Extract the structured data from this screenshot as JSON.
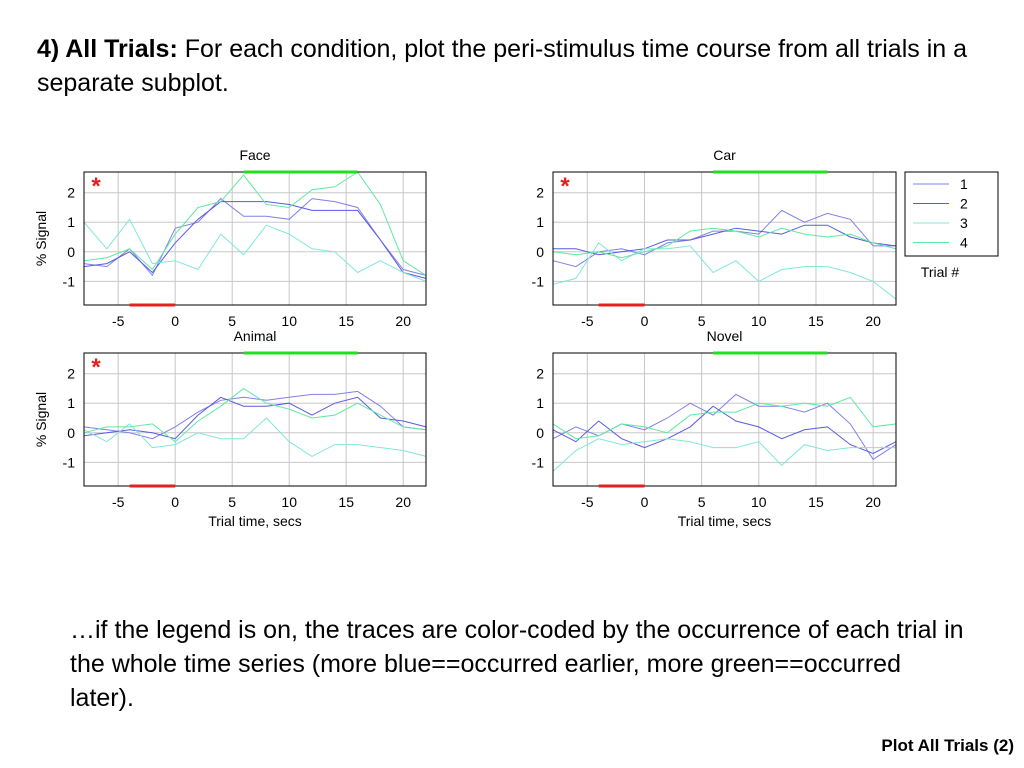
{
  "slide": {
    "heading_bold": "4) All Trials:",
    "heading_text": " For each condition, plot the peri-stimulus time course from all trials in a separate subplot.",
    "caption": "…if the legend is on, the traces are color-coded by the occurrence of each trial in the whole time series (more blue==occurred earlier, more green==occurred later).",
    "footer": "Plot All Trials (2)"
  },
  "colors": {
    "trial_1": "#8080e8",
    "trial_2": "#5a5ae0",
    "trial_3": "#80e8d8",
    "trial_4": "#60e8a0",
    "baseline_bar": "#e52020",
    "stimulus_bar": "#20e020",
    "asterisk": "#e52020",
    "grid": "#c8c8c8"
  },
  "chart_data": [
    {
      "type": "line",
      "title": "Face",
      "xlabel": "",
      "ylabel": "% Signal",
      "xlim": [
        -8,
        22
      ],
      "ylim": [
        -1.8,
        2.7
      ],
      "xticks": [
        -5,
        0,
        5,
        10,
        15,
        20
      ],
      "yticks": [
        -1,
        0,
        1,
        2
      ],
      "grid": true,
      "significant": true,
      "asterisk": "*",
      "baseline_window": [
        -4,
        0
      ],
      "stimulus_window": [
        6,
        16
      ],
      "x": [
        -8,
        -6,
        -4,
        -2,
        0,
        2,
        4,
        6,
        8,
        10,
        12,
        14,
        16,
        18,
        20,
        22
      ],
      "series": [
        {
          "name": "1",
          "values": [
            -0.4,
            -0.5,
            0.1,
            -0.8,
            0.8,
            1.0,
            1.8,
            1.2,
            1.2,
            1.1,
            1.8,
            1.7,
            1.5,
            0.4,
            -0.6,
            -0.8
          ]
        },
        {
          "name": "2",
          "values": [
            -0.5,
            -0.4,
            0.0,
            -0.7,
            0.3,
            1.1,
            1.7,
            1.7,
            1.7,
            1.6,
            1.4,
            1.4,
            1.4,
            0.4,
            -0.7,
            -0.9
          ]
        },
        {
          "name": "3",
          "values": [
            1.0,
            0.1,
            1.1,
            -0.4,
            -0.3,
            -0.6,
            0.6,
            -0.1,
            0.9,
            0.6,
            0.1,
            0.0,
            -0.7,
            -0.3,
            -0.7,
            -1.0
          ]
        },
        {
          "name": "4",
          "values": [
            -0.3,
            -0.2,
            0.1,
            -0.6,
            0.6,
            1.5,
            1.7,
            2.6,
            1.6,
            1.5,
            2.1,
            2.2,
            2.7,
            1.6,
            -0.3,
            -0.8
          ]
        }
      ]
    },
    {
      "type": "line",
      "title": "Car",
      "xlabel": "",
      "ylabel": "",
      "xlim": [
        -8,
        22
      ],
      "ylim": [
        -1.8,
        2.7
      ],
      "xticks": [
        -5,
        0,
        5,
        10,
        15,
        20
      ],
      "yticks": [
        -1,
        0,
        1,
        2
      ],
      "grid": true,
      "significant": true,
      "asterisk": "*",
      "baseline_window": [
        -4,
        0
      ],
      "stimulus_window": [
        6,
        16
      ],
      "x": [
        -8,
        -6,
        -4,
        -2,
        0,
        2,
        4,
        6,
        8,
        10,
        12,
        14,
        16,
        18,
        20,
        22
      ],
      "series": [
        {
          "name": "1",
          "values": [
            -0.3,
            -0.5,
            0.0,
            0.1,
            -0.1,
            0.3,
            0.4,
            0.7,
            0.7,
            0.6,
            1.4,
            1.0,
            1.3,
            1.1,
            0.2,
            0.2
          ]
        },
        {
          "name": "2",
          "values": [
            0.1,
            0.1,
            -0.1,
            0.0,
            0.1,
            0.4,
            0.4,
            0.6,
            0.8,
            0.7,
            0.6,
            0.9,
            0.9,
            0.5,
            0.3,
            0.2
          ]
        },
        {
          "name": "3",
          "values": [
            -1.1,
            -0.9,
            0.3,
            -0.3,
            0.1,
            0.1,
            0.2,
            -0.7,
            -0.3,
            -1.0,
            -0.6,
            -0.5,
            -0.5,
            -0.7,
            -1.0,
            -1.6
          ]
        },
        {
          "name": "4",
          "values": [
            0.0,
            -0.1,
            0.0,
            -0.2,
            0.0,
            0.2,
            0.7,
            0.8,
            0.7,
            0.5,
            0.8,
            0.6,
            0.5,
            0.6,
            0.3,
            0.1
          ]
        }
      ]
    },
    {
      "type": "line",
      "title": "Animal",
      "xlabel": "Trial time, secs",
      "ylabel": "% Signal",
      "xlim": [
        -8,
        22
      ],
      "ylim": [
        -1.8,
        2.7
      ],
      "xticks": [
        -5,
        0,
        5,
        10,
        15,
        20
      ],
      "yticks": [
        -1,
        0,
        1,
        2
      ],
      "grid": true,
      "significant": true,
      "asterisk": "*",
      "baseline_window": [
        -4,
        0
      ],
      "stimulus_window": [
        6,
        16
      ],
      "x": [
        -8,
        -6,
        -4,
        -2,
        0,
        2,
        4,
        6,
        8,
        10,
        12,
        14,
        16,
        18,
        20,
        22
      ],
      "series": [
        {
          "name": "1",
          "values": [
            0.2,
            0.1,
            0.0,
            -0.2,
            0.2,
            0.7,
            1.1,
            1.2,
            1.1,
            1.2,
            1.3,
            1.3,
            1.4,
            0.9,
            0.2,
            0.1
          ]
        },
        {
          "name": "2",
          "values": [
            -0.1,
            0.0,
            0.1,
            0.0,
            -0.2,
            0.6,
            1.2,
            0.9,
            0.9,
            1.0,
            0.6,
            1.0,
            1.2,
            0.5,
            0.4,
            0.2
          ]
        },
        {
          "name": "3",
          "values": [
            0.1,
            -0.3,
            0.3,
            -0.5,
            -0.4,
            0.0,
            -0.2,
            -0.2,
            0.5,
            -0.3,
            -0.8,
            -0.4,
            -0.4,
            -0.5,
            -0.6,
            -0.8
          ]
        },
        {
          "name": "4",
          "values": [
            0.0,
            0.2,
            0.2,
            0.3,
            -0.3,
            0.4,
            0.9,
            1.5,
            1.0,
            0.8,
            0.5,
            0.6,
            1.0,
            0.6,
            0.2,
            0.1
          ]
        }
      ]
    },
    {
      "type": "line",
      "title": "Novel",
      "xlabel": "Trial time, secs",
      "ylabel": "",
      "xlim": [
        -8,
        22
      ],
      "ylim": [
        -1.8,
        2.7
      ],
      "xticks": [
        -5,
        0,
        5,
        10,
        15,
        20
      ],
      "yticks": [
        -1,
        0,
        1,
        2
      ],
      "grid": true,
      "significant": false,
      "asterisk": "",
      "baseline_window": [
        -4,
        0
      ],
      "stimulus_window": [
        6,
        16
      ],
      "x": [
        -8,
        -6,
        -4,
        -2,
        0,
        2,
        4,
        6,
        8,
        10,
        12,
        14,
        16,
        18,
        20,
        22
      ],
      "series": [
        {
          "name": "1",
          "values": [
            -0.2,
            0.2,
            -0.1,
            0.3,
            0.1,
            0.5,
            1.0,
            0.6,
            1.3,
            0.9,
            0.9,
            0.7,
            1.0,
            0.3,
            -0.9,
            -0.4
          ]
        },
        {
          "name": "2",
          "values": [
            0.1,
            -0.3,
            0.4,
            -0.2,
            -0.5,
            -0.2,
            0.2,
            0.9,
            0.4,
            0.2,
            -0.2,
            0.1,
            0.2,
            -0.4,
            -0.7,
            -0.3
          ]
        },
        {
          "name": "3",
          "values": [
            -1.3,
            -0.6,
            -0.2,
            -0.4,
            -0.3,
            -0.2,
            -0.3,
            -0.5,
            -0.5,
            -0.3,
            -1.1,
            -0.4,
            -0.6,
            -0.5,
            -0.5,
            -0.5
          ]
        },
        {
          "name": "4",
          "values": [
            0.3,
            -0.2,
            -0.1,
            0.3,
            0.2,
            0.0,
            0.6,
            0.7,
            0.7,
            1.0,
            0.9,
            1.0,
            0.9,
            1.2,
            0.2,
            0.3
          ]
        }
      ]
    }
  ],
  "legend": {
    "entries": [
      "1",
      "2",
      "3",
      "4"
    ],
    "title": "Trial #",
    "placement": "right of top-right subplot"
  }
}
